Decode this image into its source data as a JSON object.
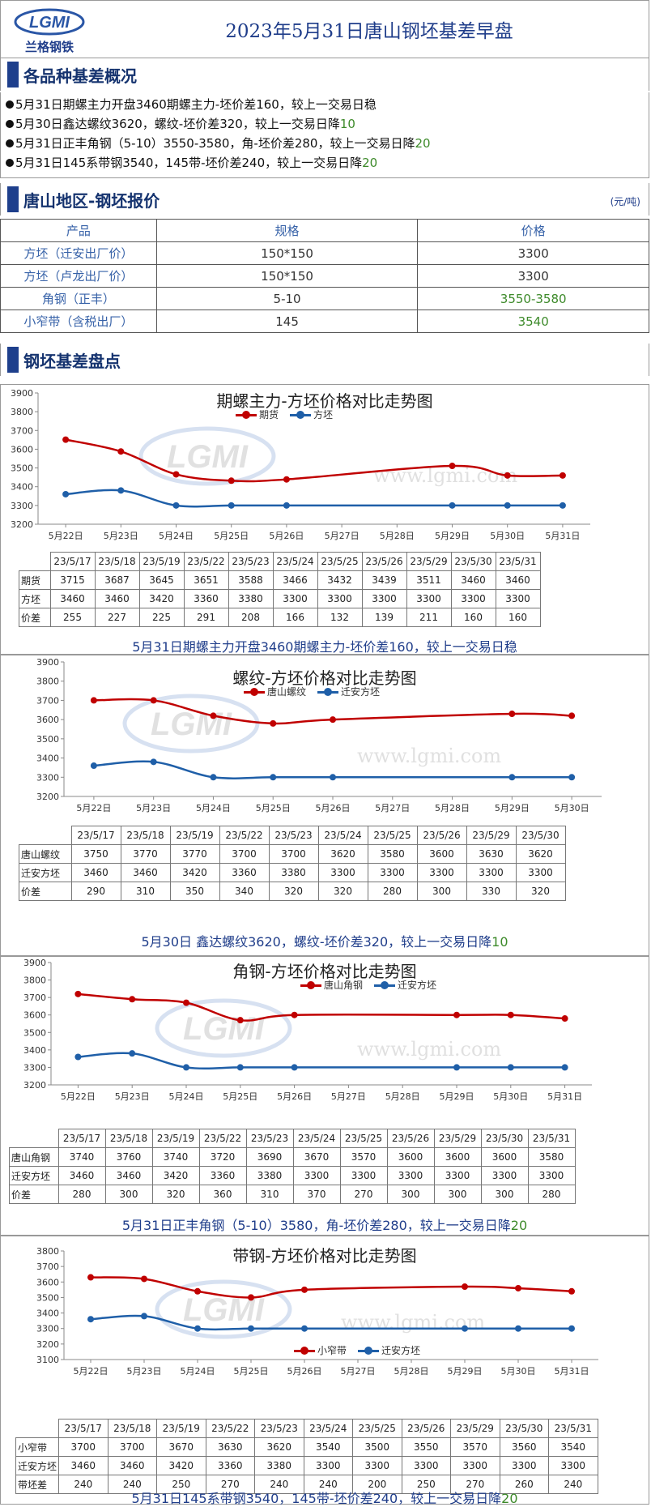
{
  "header": {
    "logo_text": "兰格钢铁",
    "title": "2023年5月31日唐山钢坯基差早盘"
  },
  "sec1": {
    "title": "各品种基差概况"
  },
  "summary": [
    {
      "text": "5月31日期螺主力开盘3460期螺主力-坯价差160，较上一交易日稳",
      "tail": ""
    },
    {
      "text": "5月30日鑫达螺纹3620，螺纹-坯价差320，较上一交易日降",
      "tail": "10"
    },
    {
      "text": "5月31日正丰角钢（5-10）3550-3580，角-坯价差280，较上一交易日降",
      "tail": "20"
    },
    {
      "text": "5月31日145系带钢3540，145带-坯价差240，较上一交易日降",
      "tail": "20"
    }
  ],
  "sec2": {
    "title": "唐山地区-钢坯报价",
    "unit": "(元/吨)"
  },
  "price_table": {
    "headers": [
      "产品",
      "规格",
      "价格"
    ],
    "rows": [
      [
        "方坯（迁安出厂价）",
        "150*150",
        "3300"
      ],
      [
        "方坯（卢龙出厂价）",
        "150*150",
        "3300"
      ],
      [
        "角钢（正丰）",
        "5-10",
        "3550-3580"
      ],
      [
        "小窄带（含税出厂）",
        "145",
        "3540"
      ]
    ]
  },
  "sec3": {
    "title": "钢坯基差盘点"
  },
  "watermark": {
    "logo": "LGMI",
    "url": "www.lgmi.com",
    "url2": "www.lgmi.com"
  },
  "chart_data": [
    {
      "type": "line",
      "title": "期螺主力-方坯价格对比走势图",
      "ylim": [
        3200,
        3900
      ],
      "yticks": [
        3200,
        3300,
        3400,
        3500,
        3600,
        3700,
        3800,
        3900
      ],
      "x": [
        "5月22日",
        "5月23日",
        "5月24日",
        "5月25日",
        "5月26日",
        "5月27日",
        "5月28日",
        "5月29日",
        "5月30日",
        "5月31日"
      ],
      "series": [
        {
          "name": "期货",
          "color": "#c00000",
          "values": [
            3651,
            3588,
            3466,
            3432,
            3439,
            null,
            null,
            3511,
            3460,
            3460
          ]
        },
        {
          "name": "方坯",
          "color": "#1f5fa8",
          "values": [
            3360,
            3380,
            3300,
            3300,
            3300,
            null,
            null,
            3300,
            3300,
            3300
          ]
        }
      ],
      "table": {
        "dates": [
          "23/5/17",
          "23/5/18",
          "23/5/19",
          "23/5/22",
          "23/5/23",
          "23/5/24",
          "23/5/25",
          "23/5/26",
          "23/5/29",
          "23/5/30",
          "23/5/31"
        ],
        "rows": [
          {
            "label": "期货",
            "values": [
              "3715",
              "3687",
              "3645",
              "3651",
              "3588",
              "3466",
              "3432",
              "3439",
              "3511",
              "3460",
              "3460"
            ]
          },
          {
            "label": "方坯",
            "values": [
              "3460",
              "3460",
              "3420",
              "3360",
              "3380",
              "3300",
              "3300",
              "3300",
              "3300",
              "3300",
              "3300"
            ]
          },
          {
            "label": "价差",
            "values": [
              "255",
              "227",
              "225",
              "291",
              "208",
              "166",
              "132",
              "139",
              "211",
              "160",
              "160"
            ]
          }
        ]
      },
      "note": "5月31日期螺主力开盘3460期螺主力-坯价差160，较上一交易日稳",
      "note_tail": ""
    },
    {
      "type": "line",
      "title": "螺纹-方坯价格对比走势图",
      "ylim": [
        3200,
        3900
      ],
      "yticks": [
        3200,
        3300,
        3400,
        3500,
        3600,
        3700,
        3800,
        3900
      ],
      "x": [
        "5月22日",
        "5月23日",
        "5月24日",
        "5月25日",
        "5月26日",
        "5月27日",
        "5月28日",
        "5月29日",
        "5月30日"
      ],
      "series": [
        {
          "name": "唐山螺纹",
          "color": "#c00000",
          "values": [
            3700,
            3700,
            3620,
            3580,
            3600,
            null,
            null,
            3630,
            3620
          ]
        },
        {
          "name": "迁安方坯",
          "color": "#1f5fa8",
          "values": [
            3360,
            3380,
            3300,
            3300,
            3300,
            null,
            null,
            3300,
            3300
          ]
        }
      ],
      "table": {
        "dates": [
          "23/5/17",
          "23/5/18",
          "23/5/19",
          "23/5/22",
          "23/5/23",
          "23/5/24",
          "23/5/25",
          "23/5/26",
          "23/5/29",
          "23/5/30"
        ],
        "rows": [
          {
            "label": "唐山螺纹",
            "values": [
              "3750",
              "3770",
              "3770",
              "3700",
              "3700",
              "3620",
              "3580",
              "3600",
              "3630",
              "3620"
            ]
          },
          {
            "label": "迁安方坯",
            "values": [
              "3460",
              "3460",
              "3420",
              "3360",
              "3380",
              "3300",
              "3300",
              "3300",
              "3300",
              "3300"
            ]
          },
          {
            "label": "价差",
            "values": [
              "290",
              "310",
              "350",
              "340",
              "320",
              "320",
              "280",
              "300",
              "330",
              "320"
            ]
          }
        ]
      },
      "note": "5月30日 鑫达螺纹3620，螺纹-坯价差320，较上一交易日降",
      "note_tail": "10"
    },
    {
      "type": "line",
      "title": "角钢-方坯价格对比走势图",
      "ylim": [
        3200,
        3900
      ],
      "yticks": [
        3200,
        3300,
        3400,
        3500,
        3600,
        3700,
        3800,
        3900
      ],
      "x": [
        "5月22日",
        "5月23日",
        "5月24日",
        "5月25日",
        "5月26日",
        "5月27日",
        "5月28日",
        "5月29日",
        "5月30日",
        "5月31日"
      ],
      "series": [
        {
          "name": "唐山角钢",
          "color": "#c00000",
          "values": [
            3720,
            3690,
            3670,
            3570,
            3600,
            null,
            null,
            3600,
            3600,
            3580
          ]
        },
        {
          "name": "迁安方坯",
          "color": "#1f5fa8",
          "values": [
            3360,
            3380,
            3300,
            3300,
            3300,
            null,
            null,
            3300,
            3300,
            3300
          ]
        }
      ],
      "table": {
        "dates": [
          "23/5/17",
          "23/5/18",
          "23/5/19",
          "23/5/22",
          "23/5/23",
          "23/5/24",
          "23/5/25",
          "23/5/26",
          "23/5/29",
          "23/5/30",
          "23/5/31"
        ],
        "rows": [
          {
            "label": "唐山角钢",
            "values": [
              "3740",
              "3760",
              "3740",
              "3720",
              "3690",
              "3670",
              "3570",
              "3600",
              "3600",
              "3600",
              "3580"
            ]
          },
          {
            "label": "迁安方坯",
            "values": [
              "3460",
              "3460",
              "3420",
              "3360",
              "3380",
              "3300",
              "3300",
              "3300",
              "3300",
              "3300",
              "3300"
            ]
          },
          {
            "label": "价差",
            "values": [
              "280",
              "300",
              "320",
              "360",
              "310",
              "370",
              "270",
              "300",
              "300",
              "300",
              "280"
            ]
          }
        ]
      },
      "note": "5月31日正丰角钢（5-10）3580，角-坯价差280，较上一交易日降",
      "note_tail": "20"
    },
    {
      "type": "line",
      "title": "带钢-方坯价格对比走势图",
      "ylim": [
        3100,
        3800
      ],
      "yticks": [
        3100,
        3200,
        3300,
        3400,
        3500,
        3600,
        3700,
        3800
      ],
      "x": [
        "5月22日",
        "5月23日",
        "5月24日",
        "5月25日",
        "5月26日",
        "5月27日",
        "5月28日",
        "5月29日",
        "5月30日",
        "5月31日"
      ],
      "series": [
        {
          "name": "小窄带",
          "color": "#c00000",
          "values": [
            3630,
            3620,
            3540,
            3500,
            3550,
            null,
            null,
            3570,
            3560,
            3540
          ]
        },
        {
          "name": "迁安方坯",
          "color": "#1f5fa8",
          "values": [
            3360,
            3380,
            3300,
            3300,
            3300,
            null,
            null,
            3300,
            3300,
            3300
          ]
        }
      ],
      "table": {
        "dates": [
          "23/5/17",
          "23/5/18",
          "23/5/19",
          "23/5/22",
          "23/5/23",
          "23/5/24",
          "23/5/25",
          "23/5/26",
          "23/5/29",
          "23/5/30",
          "23/5/31"
        ],
        "rows": [
          {
            "label": "小窄带",
            "values": [
              "3700",
              "3700",
              "3670",
              "3630",
              "3620",
              "3540",
              "3500",
              "3550",
              "3570",
              "3560",
              "3540"
            ]
          },
          {
            "label": "迁安方坯",
            "values": [
              "3460",
              "3460",
              "3420",
              "3360",
              "3380",
              "3300",
              "3300",
              "3300",
              "3300",
              "3300",
              "3300"
            ]
          },
          {
            "label": "带坯差",
            "values": [
              "240",
              "240",
              "250",
              "270",
              "240",
              "240",
              "200",
              "250",
              "270",
              "260",
              "240"
            ]
          }
        ]
      },
      "note": "5月31日145系带钢3540，145带-坯价差240，较上一交易日降",
      "note_tail": "20"
    }
  ]
}
